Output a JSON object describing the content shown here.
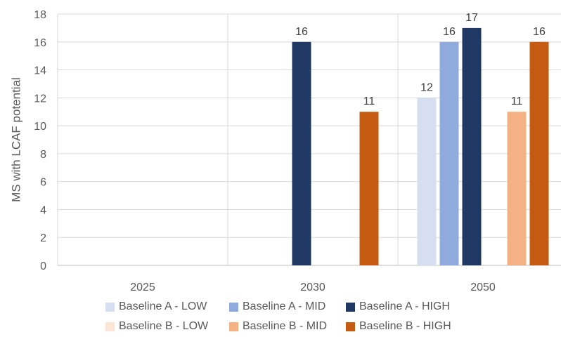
{
  "chart_data": {
    "type": "bar",
    "ylabel": "MS with LCAF potential",
    "ylim": [
      0,
      18
    ],
    "yticks": [
      0,
      2,
      4,
      6,
      8,
      10,
      12,
      14,
      16,
      18
    ],
    "grid": true,
    "legend_position": "bottom",
    "categories": [
      "2025",
      "2030",
      "2050"
    ],
    "series": [
      {
        "name": "Baseline A - LOW",
        "color": "#D6DFF0",
        "values": [
          null,
          null,
          12
        ]
      },
      {
        "name": "Baseline A - MID",
        "color": "#8FAADC",
        "values": [
          null,
          null,
          16
        ]
      },
      {
        "name": "Baseline A - HIGH",
        "color": "#1F3864",
        "values": [
          null,
          16,
          17
        ]
      },
      {
        "name": "Baseline B - LOW",
        "color": "#FBE5D6",
        "values": [
          null,
          null,
          null
        ]
      },
      {
        "name": "Baseline B - MID",
        "color": "#F4B183",
        "values": [
          null,
          null,
          11
        ]
      },
      {
        "name": "Baseline B - HIGH",
        "color": "#C55A11",
        "values": [
          null,
          11,
          16
        ]
      }
    ]
  }
}
